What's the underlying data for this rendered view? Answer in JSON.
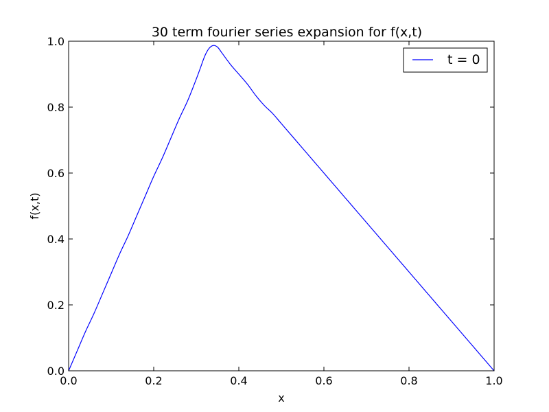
{
  "chart_data": {
    "type": "line",
    "title": "30 term fourier series expansion for f(x,t)",
    "xlabel": "x",
    "ylabel": "f(x,t)",
    "xlim": [
      0.0,
      1.0
    ],
    "ylim": [
      0.0,
      1.0
    ],
    "xticks": [
      0.0,
      0.2,
      0.4,
      0.6,
      0.8,
      1.0
    ],
    "yticks": [
      0.0,
      0.2,
      0.4,
      0.6,
      0.8,
      1.0
    ],
    "xtick_labels": [
      "0.0",
      "0.2",
      "0.4",
      "0.6",
      "0.8",
      "1.0"
    ],
    "ytick_labels": [
      "0.0",
      "0.2",
      "0.4",
      "0.6",
      "0.8",
      "1.0"
    ],
    "grid": false,
    "legend_position": "top-right",
    "series": [
      {
        "name": "t = 0",
        "color": "#0000ff",
        "x": [
          0.0,
          0.02,
          0.04,
          0.06,
          0.08,
          0.1,
          0.12,
          0.14,
          0.16,
          0.18,
          0.2,
          0.22,
          0.24,
          0.26,
          0.28,
          0.3,
          0.31,
          0.32,
          0.33,
          0.34,
          0.35,
          0.36,
          0.38,
          0.4,
          0.42,
          0.44,
          0.46,
          0.48,
          0.5,
          0.55,
          0.6,
          0.65,
          0.7,
          0.75,
          0.8,
          0.85,
          0.9,
          0.95,
          1.0
        ],
        "y": [
          0.0,
          0.06,
          0.12,
          0.175,
          0.235,
          0.295,
          0.355,
          0.41,
          0.47,
          0.53,
          0.59,
          0.645,
          0.705,
          0.765,
          0.82,
          0.885,
          0.92,
          0.955,
          0.978,
          0.987,
          0.982,
          0.965,
          0.93,
          0.9,
          0.87,
          0.835,
          0.805,
          0.78,
          0.75,
          0.675,
          0.6,
          0.525,
          0.45,
          0.375,
          0.3,
          0.225,
          0.15,
          0.075,
          0.0
        ]
      }
    ]
  }
}
